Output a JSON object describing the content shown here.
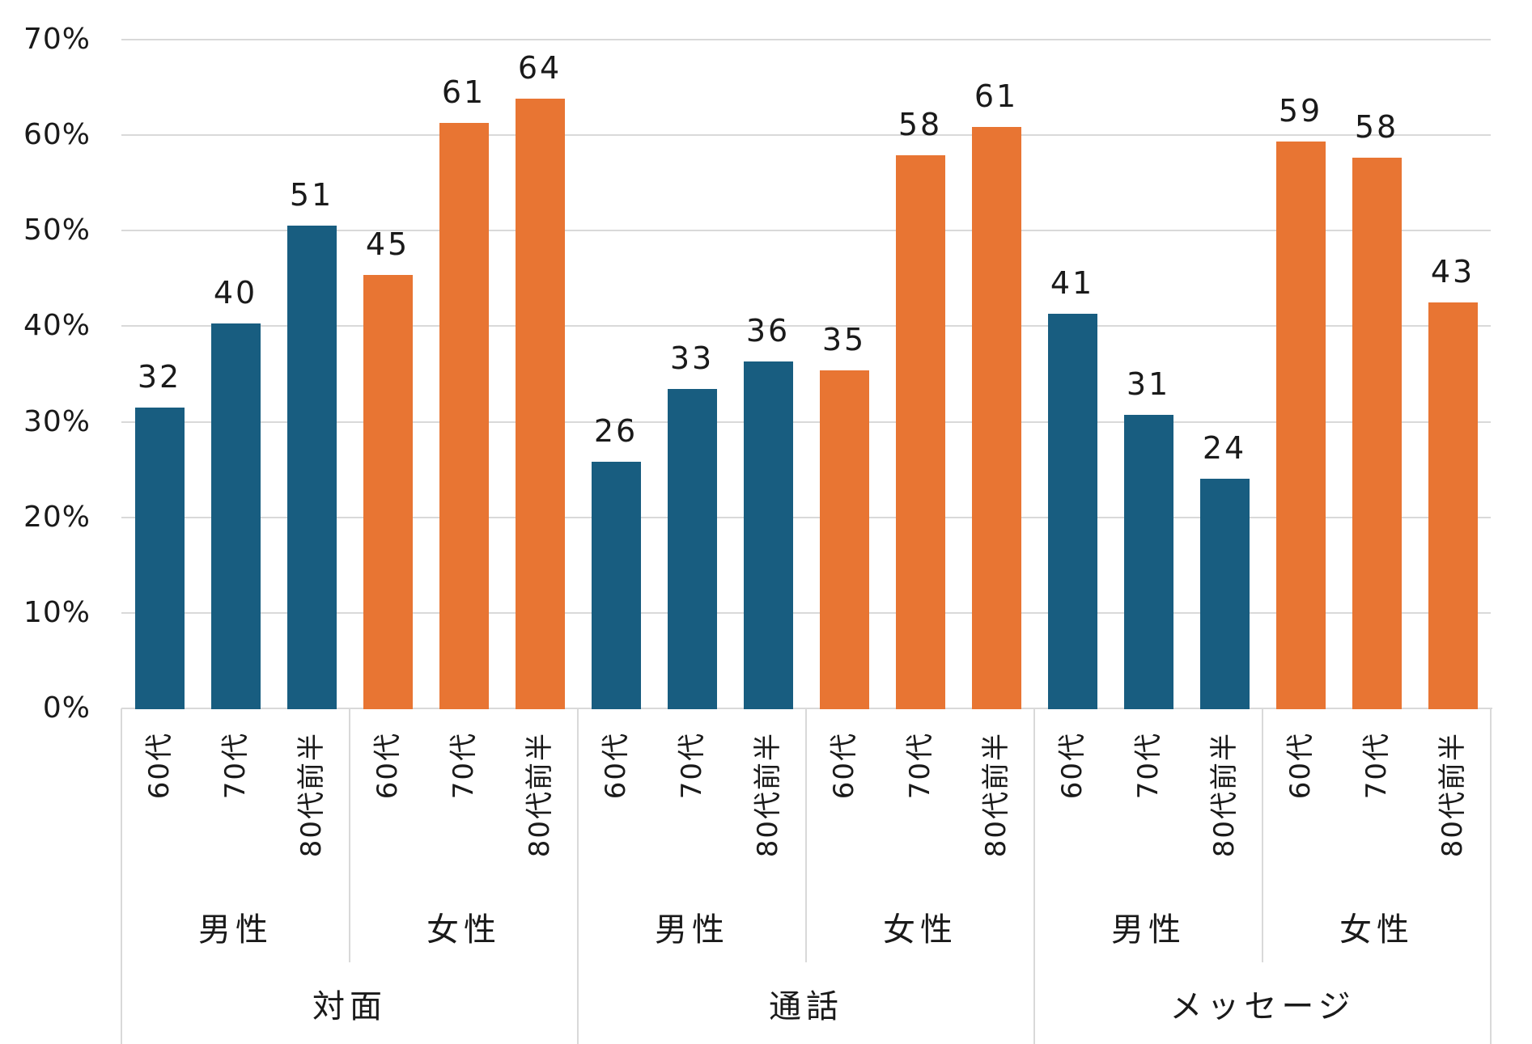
{
  "chart_data": {
    "type": "bar",
    "title": "",
    "unit": "%",
    "y_axis": {
      "min": 0,
      "max": 70,
      "step": 10,
      "grid": true,
      "tick_labels": [
        "0%",
        "10%",
        "20%",
        "30%",
        "40%",
        "50%",
        "60%",
        "70%"
      ]
    },
    "x_axis": {
      "level_1_ages": [
        "60代",
        "70代",
        "80代前半"
      ],
      "level_2_genders": [
        "男性",
        "女性"
      ],
      "level_3_categories": [
        "対面",
        "通話",
        "メッセージ"
      ]
    },
    "legend": {
      "position": "none",
      "series": [
        "男性",
        "女性"
      ]
    },
    "colors": {
      "male_bar": "#185d80",
      "female_bar": "#e87533",
      "gridline": "#d9d9d9",
      "axis_border": "#d9d9d9",
      "text": "#1a1a1a",
      "background": "#ffffff"
    },
    "groups": [
      {
        "category": "対面",
        "genders": [
          {
            "gender": "男性",
            "bars": [
              {
                "age": "60代",
                "label": "32",
                "value": 31.5
              },
              {
                "age": "70代",
                "label": "40",
                "value": 40.3
              },
              {
                "age": "80代前半",
                "label": "51",
                "value": 50.5
              }
            ]
          },
          {
            "gender": "女性",
            "bars": [
              {
                "age": "60代",
                "label": "45",
                "value": 45.4
              },
              {
                "age": "70代",
                "label": "61",
                "value": 61.3
              },
              {
                "age": "80代前半",
                "label": "64",
                "value": 63.8
              }
            ]
          }
        ]
      },
      {
        "category": "通話",
        "genders": [
          {
            "gender": "男性",
            "bars": [
              {
                "age": "60代",
                "label": "26",
                "value": 25.8
              },
              {
                "age": "70代",
                "label": "33",
                "value": 33.4
              },
              {
                "age": "80代前半",
                "label": "36",
                "value": 36.3
              }
            ]
          },
          {
            "gender": "女性",
            "bars": [
              {
                "age": "60代",
                "label": "35",
                "value": 35.4
              },
              {
                "age": "70代",
                "label": "58",
                "value": 57.9
              },
              {
                "age": "80代前半",
                "label": "61",
                "value": 60.9
              }
            ]
          }
        ]
      },
      {
        "category": "メッセージ",
        "genders": [
          {
            "gender": "男性",
            "bars": [
              {
                "age": "60代",
                "label": "41",
                "value": 41.3
              },
              {
                "age": "70代",
                "label": "31",
                "value": 30.7
              },
              {
                "age": "80代前半",
                "label": "24",
                "value": 24.0
              }
            ]
          },
          {
            "gender": "女性",
            "bars": [
              {
                "age": "60代",
                "label": "59",
                "value": 59.3
              },
              {
                "age": "70代",
                "label": "58",
                "value": 57.6
              },
              {
                "age": "80代前半",
                "label": "43",
                "value": 42.5
              }
            ]
          }
        ]
      }
    ]
  }
}
